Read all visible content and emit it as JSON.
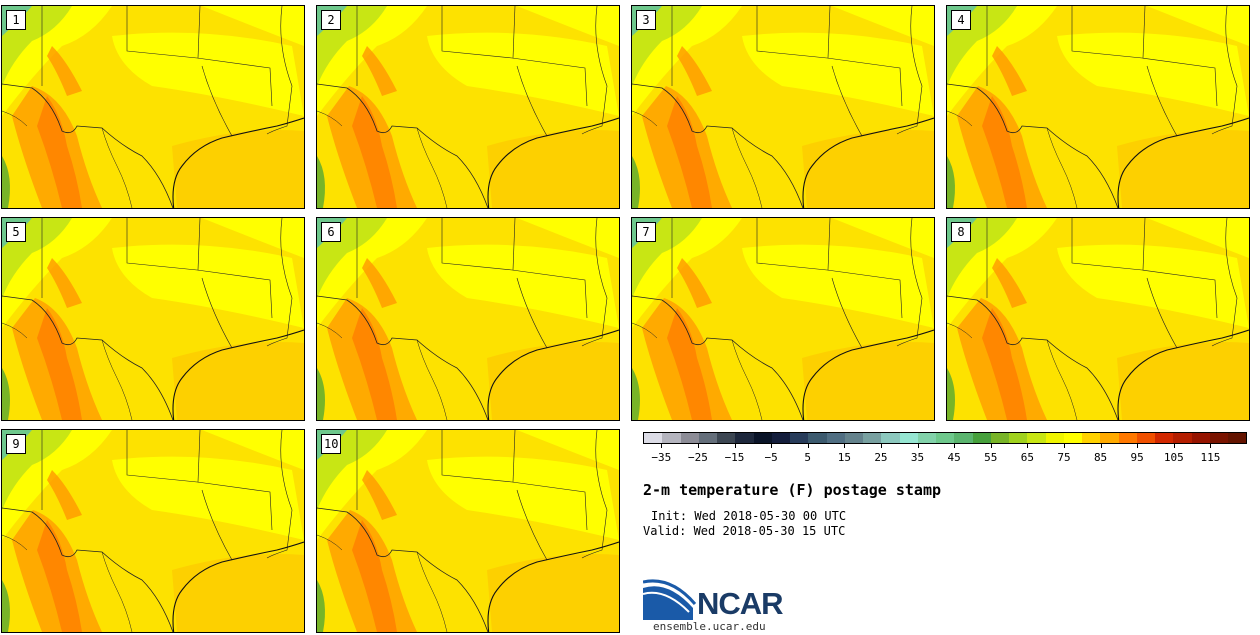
{
  "panels": [
    {
      "label": "1"
    },
    {
      "label": "2"
    },
    {
      "label": "3"
    },
    {
      "label": "4"
    },
    {
      "label": "5"
    },
    {
      "label": "6"
    },
    {
      "label": "7"
    },
    {
      "label": "8"
    },
    {
      "label": "9"
    },
    {
      "label": "10"
    }
  ],
  "colorbar": {
    "colors": [
      "#dcdce6",
      "#b4b4be",
      "#8c8c96",
      "#646e7a",
      "#3c4652",
      "#1e283c",
      "#0a1428",
      "#141e3c",
      "#283c5a",
      "#3c5a6e",
      "#506e82",
      "#64828c",
      "#78a0a0",
      "#8cc8be",
      "#96e6d2",
      "#82d2aa",
      "#6ec88c",
      "#5ab46e",
      "#46a03c",
      "#78b428",
      "#a0d21e",
      "#c8e614",
      "#f0f500",
      "#ffff00",
      "#ffd200",
      "#ffaa00",
      "#ff7800",
      "#f05000",
      "#d22800",
      "#b41e00",
      "#961400",
      "#7a1400",
      "#641400"
    ],
    "tick_labels": [
      "−35",
      "−25",
      "−15",
      "−5",
      "5",
      "15",
      "25",
      "35",
      "45",
      "55",
      "65",
      "75",
      "85",
      "95",
      "105",
      "115"
    ]
  },
  "title": "2-m temperature (F) postage stamp",
  "init": "Init: Wed 2018-05-30 00 UTC",
  "valid": "Valid: Wed 2018-05-30 15 UTC",
  "logo": {
    "text": "NCAR",
    "icon": "ncar-swoosh-icon",
    "colors": [
      "#1a5aa8",
      "#1a3b66"
    ]
  },
  "site": "ensemble.ucar.edu"
}
